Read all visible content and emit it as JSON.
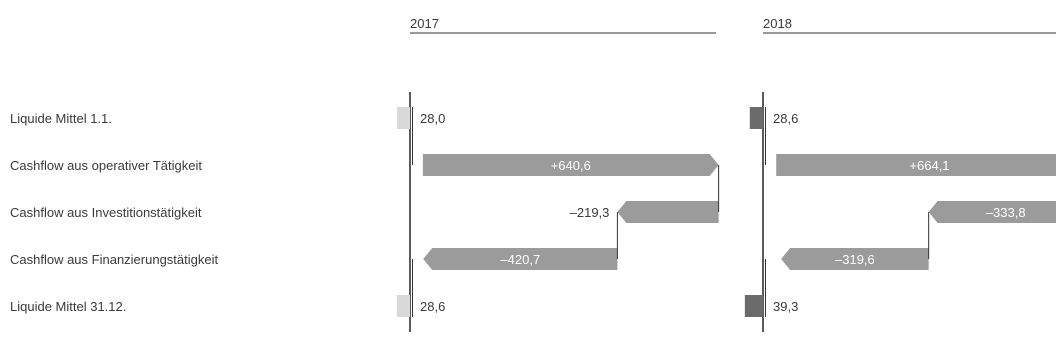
{
  "chart_data": {
    "type": "waterfall",
    "colors": {
      "flow_bar": "#9b9b9b",
      "bar_2017_balance": "#d9d9d9",
      "bar_2018_balance": "#6b6b6b",
      "axis": "#333333",
      "text": "#3a3a3a"
    },
    "categories": [
      "Liquide Mittel 1.1.",
      "Cashflow aus operativer Tätigkeit",
      "Cashflow aus Investitionstätigkeit",
      "Cashflow aus Finanzierungstätigkeit",
      "Liquide Mittel 31.12."
    ],
    "series": [
      {
        "name": "2017",
        "values": [
          28.0,
          640.6,
          -219.3,
          -420.7,
          28.6
        ],
        "labels": [
          "28,0",
          "+640,6",
          "–219,3",
          "–420,7",
          "28,6"
        ]
      },
      {
        "name": "2018",
        "values": [
          28.6,
          664.1,
          -333.8,
          -319.6,
          39.3
        ],
        "labels": [
          "28,6",
          "+664,1",
          "–333,8",
          "–319,6",
          "39,3"
        ]
      }
    ]
  }
}
